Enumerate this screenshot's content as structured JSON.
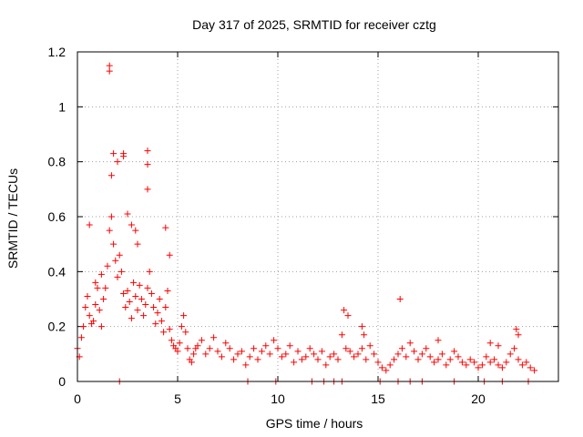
{
  "chart_data": {
    "type": "scatter",
    "title": "Day 317 of 2025, SRMTID for receiver cztg",
    "xlabel": "GPS time / hours",
    "ylabel": "SRMTID / TECUs",
    "xlim": [
      0,
      24
    ],
    "ylim": [
      0,
      1.2
    ],
    "xticks": [
      0,
      5,
      10,
      15,
      20
    ],
    "xtick_labels": [
      "0",
      "5",
      "10",
      "15",
      "20"
    ],
    "yticks": [
      0,
      0.2,
      0.4,
      0.6,
      0.8,
      1.0,
      1.2
    ],
    "ytick_labels": [
      "0",
      "0.2",
      "0.4",
      "0.6",
      "0.8",
      "1",
      "1.2"
    ],
    "grid": true,
    "marker": "+",
    "color": "#ff0000",
    "series": [
      {
        "name": "SRMTID",
        "x": [
          0.0,
          0.1,
          0.2,
          0.3,
          0.4,
          0.5,
          0.6,
          0.7,
          0.8,
          0.9,
          1.0,
          1.1,
          1.2,
          1.3,
          1.4,
          1.5,
          1.6,
          1.7,
          1.8,
          1.9,
          2.0,
          2.1,
          2.2,
          2.3,
          2.4,
          2.5,
          2.6,
          2.7,
          2.8,
          2.9,
          3.0,
          3.1,
          3.2,
          3.3,
          3.4,
          3.5,
          3.6,
          3.7,
          3.8,
          3.9,
          4.0,
          4.1,
          4.2,
          4.3,
          4.4,
          4.5,
          4.6,
          4.7,
          4.8,
          4.9,
          5.0,
          5.1,
          5.2,
          5.3,
          5.4,
          5.5,
          5.6,
          5.7,
          5.8,
          5.9,
          6.0,
          6.2,
          6.4,
          6.6,
          6.8,
          7.0,
          7.2,
          7.4,
          7.6,
          7.8,
          8.0,
          8.2,
          8.4,
          8.6,
          8.8,
          9.0,
          9.2,
          9.4,
          9.6,
          9.8,
          10.0,
          10.2,
          10.4,
          10.6,
          10.8,
          11.0,
          11.2,
          11.4,
          11.6,
          11.8,
          12.0,
          12.2,
          12.4,
          12.6,
          12.8,
          13.0,
          13.2,
          13.4,
          13.6,
          13.8,
          14.0,
          14.2,
          14.4,
          14.6,
          14.8,
          15.0,
          15.2,
          15.4,
          15.6,
          15.8,
          16.0,
          16.1,
          16.2,
          16.4,
          16.6,
          16.8,
          17.0,
          17.2,
          17.4,
          17.6,
          17.8,
          18.0,
          18.2,
          18.4,
          18.6,
          18.8,
          19.0,
          19.2,
          19.4,
          19.6,
          19.8,
          20.0,
          20.2,
          20.4,
          20.6,
          20.8,
          21.0,
          21.2,
          21.4,
          21.6,
          21.8,
          22.0,
          22.2,
          22.4,
          22.6,
          22.8,
          1.6,
          1.6,
          3.5,
          3.5,
          3.5,
          2.3,
          2.3,
          1.7,
          1.8,
          2.0,
          2.5,
          2.7,
          3.0,
          2.1,
          8.5,
          9.9,
          11.7,
          12.3,
          12.8,
          13.2,
          15.1,
          16.0,
          16.6,
          17.2,
          18.8,
          20.3,
          21.2,
          22.5,
          0.6,
          1.2,
          2.9,
          4.4,
          4.6,
          0.9,
          13.3,
          13.5,
          14.2,
          14.3,
          18.0,
          20.6,
          21.0,
          21.9,
          22.0
        ],
        "y": [
          0.12,
          0.09,
          0.16,
          0.2,
          0.27,
          0.31,
          0.24,
          0.21,
          0.22,
          0.28,
          0.34,
          0.26,
          0.2,
          0.3,
          0.34,
          0.42,
          0.55,
          0.6,
          0.5,
          0.44,
          0.38,
          0.46,
          0.4,
          0.32,
          0.27,
          0.33,
          0.29,
          0.23,
          0.36,
          0.31,
          0.26,
          0.35,
          0.3,
          0.24,
          0.28,
          0.34,
          0.4,
          0.32,
          0.27,
          0.21,
          0.25,
          0.3,
          0.22,
          0.18,
          0.27,
          0.33,
          0.19,
          0.15,
          0.13,
          0.12,
          0.11,
          0.14,
          0.2,
          0.24,
          0.18,
          0.12,
          0.08,
          0.07,
          0.1,
          0.12,
          0.13,
          0.15,
          0.1,
          0.12,
          0.16,
          0.11,
          0.09,
          0.14,
          0.12,
          0.08,
          0.1,
          0.11,
          0.06,
          0.09,
          0.12,
          0.08,
          0.11,
          0.13,
          0.1,
          0.15,
          0.12,
          0.09,
          0.1,
          0.13,
          0.07,
          0.11,
          0.08,
          0.09,
          0.12,
          0.1,
          0.08,
          0.11,
          0.06,
          0.09,
          0.1,
          0.08,
          0.17,
          0.12,
          0.11,
          0.09,
          0.1,
          0.12,
          0.08,
          0.13,
          0.1,
          0.07,
          0.05,
          0.04,
          0.06,
          0.08,
          0.1,
          0.3,
          0.12,
          0.09,
          0.14,
          0.11,
          0.08,
          0.1,
          0.12,
          0.09,
          0.07,
          0.08,
          0.1,
          0.06,
          0.08,
          0.11,
          0.09,
          0.07,
          0.06,
          0.08,
          0.07,
          0.05,
          0.06,
          0.09,
          0.07,
          0.08,
          0.06,
          0.05,
          0.07,
          0.1,
          0.12,
          0.08,
          0.06,
          0.07,
          0.05,
          0.04,
          1.15,
          1.13,
          0.84,
          0.79,
          0.7,
          0.83,
          0.82,
          0.75,
          0.83,
          0.8,
          0.61,
          0.57,
          0.5,
          0.0,
          0.0,
          0.0,
          0.0,
          0.0,
          0.0,
          0.0,
          0.0,
          0.0,
          0.0,
          0.0,
          0.0,
          0.0,
          0.0,
          0.0,
          0.57,
          0.39,
          0.55,
          0.56,
          0.46,
          0.36,
          0.26,
          0.24,
          0.2,
          0.17,
          0.15,
          0.14,
          0.13,
          0.19,
          0.17
        ]
      }
    ]
  }
}
